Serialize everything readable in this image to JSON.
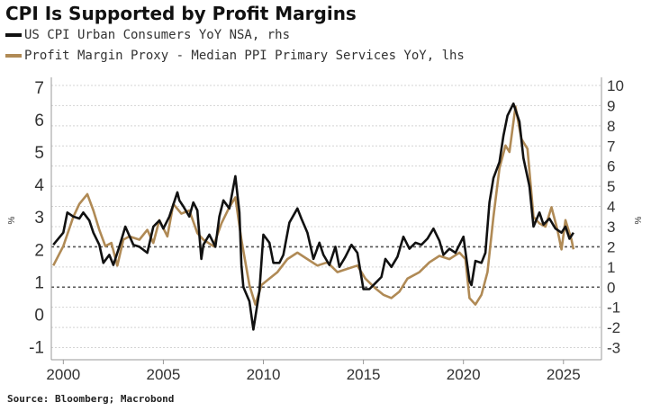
{
  "chart_data": {
    "type": "line",
    "title": "CPI Is Supported by Profit Margins",
    "source": "Source: Bloomberg; Macrobond",
    "left_axis": {
      "label": "%",
      "ticks": [
        -1,
        0,
        1,
        2,
        3,
        4,
        5,
        6,
        7
      ],
      "range": [
        -1.4,
        7.3
      ]
    },
    "right_axis": {
      "label": "%",
      "ticks": [
        -3,
        -2,
        -1,
        0,
        1,
        2,
        3,
        4,
        5,
        6,
        7,
        8,
        9,
        10
      ],
      "range": [
        -3.6,
        10.4
      ]
    },
    "x_axis": {
      "ticks": [
        2000,
        2005,
        2010,
        2015,
        2020,
        2025
      ],
      "range": [
        1999.4,
        2026.9
      ]
    },
    "reference_lines_rhs": [
      0,
      2
    ],
    "grid": "horizontal dotted",
    "legend_position": "top-left",
    "colors": {
      "cpi": "#111111",
      "ppi": "#b08a55"
    },
    "series": [
      {
        "name": "US CPI Urban Consumers YoY NSA, rhs",
        "axis": "right",
        "color": "#111111",
        "x": [
          1999.5,
          2000.0,
          2000.2,
          2000.5,
          2000.8,
          2001.0,
          2001.3,
          2001.5,
          2001.8,
          2002.0,
          2002.3,
          2002.5,
          2002.8,
          2003.1,
          2003.5,
          2003.8,
          2004.2,
          2004.5,
          2004.8,
          2005.0,
          2005.3,
          2005.7,
          2005.8,
          2006.0,
          2006.3,
          2006.5,
          2006.7,
          2006.9,
          2007.0,
          2007.3,
          2007.6,
          2007.8,
          2008.0,
          2008.3,
          2008.6,
          2008.8,
          2008.9,
          2009.0,
          2009.3,
          2009.5,
          2009.8,
          2010.0,
          2010.3,
          2010.5,
          2010.8,
          2011.0,
          2011.3,
          2011.7,
          2011.9,
          2012.2,
          2012.5,
          2012.8,
          2013.0,
          2013.3,
          2013.6,
          2013.8,
          2014.1,
          2014.4,
          2014.7,
          2015.0,
          2015.3,
          2015.6,
          2015.9,
          2016.1,
          2016.4,
          2016.7,
          2017.0,
          2017.3,
          2017.6,
          2017.9,
          2018.2,
          2018.5,
          2018.8,
          2019.0,
          2019.3,
          2019.6,
          2020.0,
          2020.3,
          2020.4,
          2020.6,
          2020.9,
          2021.1,
          2021.3,
          2021.5,
          2021.8,
          2022.0,
          2022.2,
          2022.5,
          2022.8,
          2023.0,
          2023.3,
          2023.5,
          2023.8,
          2024.0,
          2024.3,
          2024.6,
          2024.9,
          2025.1,
          2025.3,
          2025.5
        ],
        "values": [
          2.1,
          2.7,
          3.7,
          3.5,
          3.4,
          3.7,
          3.3,
          2.7,
          2.1,
          1.2,
          1.6,
          1.1,
          2.0,
          3.0,
          2.1,
          2.0,
          1.7,
          3.0,
          3.3,
          2.9,
          3.5,
          4.7,
          4.3,
          4.0,
          3.5,
          4.2,
          3.8,
          1.4,
          2.1,
          2.6,
          2.0,
          3.5,
          4.3,
          3.9,
          5.5,
          3.7,
          1.1,
          0.0,
          -0.7,
          -2.1,
          -0.2,
          2.6,
          2.2,
          1.2,
          1.2,
          1.6,
          3.2,
          3.9,
          3.4,
          2.7,
          1.4,
          2.2,
          1.6,
          1.1,
          2.0,
          1.0,
          1.5,
          2.1,
          1.7,
          -0.1,
          -0.1,
          0.2,
          0.5,
          1.4,
          1.0,
          1.5,
          2.5,
          1.9,
          2.2,
          2.1,
          2.4,
          2.9,
          2.3,
          1.6,
          1.9,
          1.7,
          2.5,
          0.3,
          0.1,
          1.3,
          1.2,
          1.7,
          4.2,
          5.4,
          6.2,
          7.5,
          8.5,
          9.1,
          8.2,
          6.4,
          5.0,
          3.0,
          3.7,
          3.1,
          3.4,
          2.9,
          2.7,
          3.0,
          2.4,
          2.7
        ]
      },
      {
        "name": "Profit Margin Proxy - Median PPI Primary Services YoY, lhs",
        "axis": "left",
        "color": "#b08a55",
        "x": [
          1999.5,
          2000.0,
          2000.5,
          2000.8,
          2001.2,
          2001.5,
          2001.8,
          2002.1,
          2002.4,
          2002.7,
          2003.0,
          2003.3,
          2003.8,
          2004.2,
          2004.5,
          2004.8,
          2005.2,
          2005.5,
          2005.9,
          2006.3,
          2006.7,
          2007.0,
          2007.5,
          2007.9,
          2008.3,
          2008.6,
          2008.9,
          2009.3,
          2009.6,
          2009.9,
          2010.3,
          2010.7,
          2011.2,
          2011.7,
          2012.2,
          2012.7,
          2013.2,
          2013.7,
          2014.2,
          2014.7,
          2015.1,
          2015.6,
          2016.0,
          2016.4,
          2016.8,
          2017.2,
          2017.8,
          2018.3,
          2018.8,
          2019.3,
          2019.8,
          2020.1,
          2020.3,
          2020.6,
          2020.9,
          2021.2,
          2021.5,
          2021.8,
          2022.1,
          2022.3,
          2022.6,
          2022.9,
          2023.2,
          2023.5,
          2023.8,
          2024.1,
          2024.4,
          2024.7,
          2024.9,
          2025.1,
          2025.4,
          2025.5
        ],
        "values": [
          1.5,
          2.1,
          3.0,
          3.4,
          3.7,
          3.2,
          2.6,
          2.1,
          2.2,
          1.5,
          2.3,
          2.4,
          2.3,
          2.6,
          2.2,
          2.9,
          2.4,
          3.4,
          3.1,
          3.2,
          2.5,
          2.3,
          2.1,
          2.8,
          3.3,
          3.6,
          2.3,
          0.9,
          0.3,
          0.9,
          1.1,
          1.3,
          1.7,
          1.9,
          1.7,
          1.5,
          1.6,
          1.3,
          1.4,
          1.5,
          1.1,
          0.8,
          0.6,
          0.5,
          0.7,
          1.1,
          1.3,
          1.6,
          1.8,
          1.7,
          1.9,
          1.7,
          0.5,
          0.3,
          0.6,
          1.3,
          3.0,
          4.5,
          5.2,
          5.0,
          6.4,
          5.4,
          5.1,
          3.0,
          2.8,
          2.7,
          3.3,
          2.6,
          2.0,
          2.9,
          2.3,
          2.0
        ]
      }
    ]
  }
}
